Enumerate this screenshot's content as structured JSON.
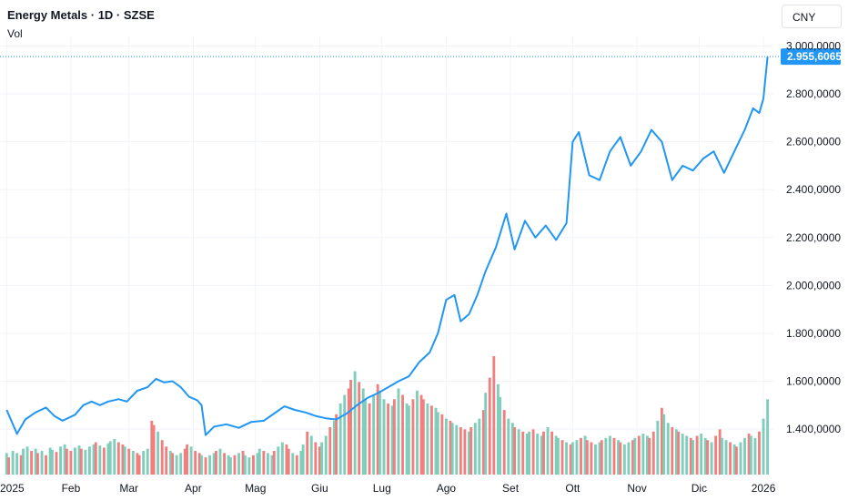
{
  "header": {
    "title": "Energy Metals · 1D · SZSE",
    "volume_label": "Vol"
  },
  "currency_button": {
    "label": "CNY"
  },
  "colors": {
    "line": "#2196f3",
    "vol_up": "#7fcdbb",
    "vol_down": "#f08080",
    "tag_bg": "#2196f3",
    "grid": "#f0f3fa"
  },
  "chart_data": {
    "type": "line",
    "title": "Energy Metals · 1D · SZSE",
    "last_price_label": "2.955,6065",
    "y_ticks": [
      "3.000,0000",
      "2.800,0000",
      "2.600,0000",
      "2.400,0000",
      "2.200,0000",
      "2.000,0000",
      "1.800,0000",
      "1.600,0000",
      "1.400,0000"
    ],
    "y_tick_values": [
      3000,
      2800,
      2600,
      2400,
      2200,
      2000,
      1800,
      1600,
      1400
    ],
    "x_ticks": [
      "2025",
      "Feb",
      "Mar",
      "Apr",
      "Mag",
      "Giu",
      "Lug",
      "Ago",
      "Set",
      "Ott",
      "Nov",
      "Dic",
      "2026"
    ],
    "x_tick_dates": [
      "2025-01-01",
      "2025-02-01",
      "2025-03-01",
      "2025-04-01",
      "2025-05-01",
      "2025-06-01",
      "2025-07-01",
      "2025-08-01",
      "2025-09-01",
      "2025-10-01",
      "2025-11-01",
      "2025-12-01",
      "2026-01-01"
    ],
    "ylim": [
      1210,
      3040
    ],
    "series": [
      {
        "values": [
          {
            "x": "2025-01-01",
            "y": 1480
          },
          {
            "x": "2025-01-06",
            "y": 1380
          },
          {
            "x": "2025-01-10",
            "y": 1440
          },
          {
            "x": "2025-01-15",
            "y": 1470
          },
          {
            "x": "2025-01-20",
            "y": 1490
          },
          {
            "x": "2025-01-24",
            "y": 1455
          },
          {
            "x": "2025-01-28",
            "y": 1435
          },
          {
            "x": "2025-02-03",
            "y": 1460
          },
          {
            "x": "2025-02-07",
            "y": 1500
          },
          {
            "x": "2025-02-11",
            "y": 1515
          },
          {
            "x": "2025-02-15",
            "y": 1500
          },
          {
            "x": "2025-02-19",
            "y": 1515
          },
          {
            "x": "2025-02-24",
            "y": 1525
          },
          {
            "x": "2025-02-28",
            "y": 1515
          },
          {
            "x": "2025-03-05",
            "y": 1560
          },
          {
            "x": "2025-03-10",
            "y": 1575
          },
          {
            "x": "2025-03-14",
            "y": 1610
          },
          {
            "x": "2025-03-18",
            "y": 1595
          },
          {
            "x": "2025-03-22",
            "y": 1600
          },
          {
            "x": "2025-03-26",
            "y": 1575
          },
          {
            "x": "2025-03-30",
            "y": 1535
          },
          {
            "x": "2025-04-03",
            "y": 1520
          },
          {
            "x": "2025-04-05",
            "y": 1500
          },
          {
            "x": "2025-04-07",
            "y": 1375
          },
          {
            "x": "2025-04-11",
            "y": 1410
          },
          {
            "x": "2025-04-17",
            "y": 1420
          },
          {
            "x": "2025-04-23",
            "y": 1405
          },
          {
            "x": "2025-04-29",
            "y": 1430
          },
          {
            "x": "2025-05-05",
            "y": 1435
          },
          {
            "x": "2025-05-10",
            "y": 1465
          },
          {
            "x": "2025-05-15",
            "y": 1495
          },
          {
            "x": "2025-05-20",
            "y": 1480
          },
          {
            "x": "2025-05-25",
            "y": 1470
          },
          {
            "x": "2025-05-30",
            "y": 1455
          },
          {
            "x": "2025-06-04",
            "y": 1445
          },
          {
            "x": "2025-06-09",
            "y": 1440
          },
          {
            "x": "2025-06-14",
            "y": 1465
          },
          {
            "x": "2025-06-19",
            "y": 1500
          },
          {
            "x": "2025-06-24",
            "y": 1530
          },
          {
            "x": "2025-06-29",
            "y": 1550
          },
          {
            "x": "2025-07-04",
            "y": 1575
          },
          {
            "x": "2025-07-09",
            "y": 1600
          },
          {
            "x": "2025-07-14",
            "y": 1620
          },
          {
            "x": "2025-07-19",
            "y": 1680
          },
          {
            "x": "2025-07-24",
            "y": 1720
          },
          {
            "x": "2025-07-28",
            "y": 1800
          },
          {
            "x": "2025-08-01",
            "y": 1940
          },
          {
            "x": "2025-08-05",
            "y": 1960
          },
          {
            "x": "2025-08-08",
            "y": 1850
          },
          {
            "x": "2025-08-12",
            "y": 1880
          },
          {
            "x": "2025-08-16",
            "y": 1960
          },
          {
            "x": "2025-08-20",
            "y": 2060
          },
          {
            "x": "2025-08-25",
            "y": 2160
          },
          {
            "x": "2025-08-30",
            "y": 2300
          },
          {
            "x": "2025-09-03",
            "y": 2150
          },
          {
            "x": "2025-09-08",
            "y": 2270
          },
          {
            "x": "2025-09-13",
            "y": 2200
          },
          {
            "x": "2025-09-18",
            "y": 2250
          },
          {
            "x": "2025-09-23",
            "y": 2190
          },
          {
            "x": "2025-09-28",
            "y": 2260
          },
          {
            "x": "2025-10-01",
            "y": 2600
          },
          {
            "x": "2025-10-04",
            "y": 2640
          },
          {
            "x": "2025-10-09",
            "y": 2460
          },
          {
            "x": "2025-10-14",
            "y": 2440
          },
          {
            "x": "2025-10-19",
            "y": 2560
          },
          {
            "x": "2025-10-24",
            "y": 2620
          },
          {
            "x": "2025-10-29",
            "y": 2500
          },
          {
            "x": "2025-11-03",
            "y": 2560
          },
          {
            "x": "2025-11-08",
            "y": 2650
          },
          {
            "x": "2025-11-13",
            "y": 2600
          },
          {
            "x": "2025-11-18",
            "y": 2440
          },
          {
            "x": "2025-11-23",
            "y": 2500
          },
          {
            "x": "2025-11-28",
            "y": 2480
          },
          {
            "x": "2025-12-03",
            "y": 2530
          },
          {
            "x": "2025-12-08",
            "y": 2560
          },
          {
            "x": "2025-12-13",
            "y": 2470
          },
          {
            "x": "2025-12-18",
            "y": 2560
          },
          {
            "x": "2025-12-23",
            "y": 2650
          },
          {
            "x": "2025-12-27",
            "y": 2740
          },
          {
            "x": "2025-12-30",
            "y": 2720
          },
          {
            "x": "2026-01-01",
            "y": 2780
          },
          {
            "x": "2026-01-03",
            "y": 2955.6065
          }
        ]
      }
    ],
    "volume": {
      "start_date": "2025-01-01",
      "end_date": "2026-01-03",
      "values": [
        20,
        16,
        22,
        20,
        18,
        24,
        26,
        22,
        24,
        20,
        22,
        18,
        25,
        23,
        21,
        26,
        28,
        24,
        22,
        25,
        27,
        24,
        23,
        26,
        28,
        30,
        27,
        25,
        29,
        31,
        33,
        30,
        28,
        26,
        24,
        22,
        20,
        18,
        22,
        24,
        50,
        46,
        40,
        32,
        26,
        22,
        20,
        18,
        20,
        24,
        28,
        26,
        22,
        20,
        18,
        16,
        18,
        20,
        22,
        24,
        20,
        18,
        16,
        18,
        20,
        22,
        18,
        16,
        18,
        20,
        24,
        22,
        20,
        18,
        22,
        26,
        30,
        28,
        24,
        20,
        18,
        22,
        28,
        40,
        36,
        30,
        26,
        30,
        36,
        44,
        50,
        56,
        66,
        74,
        80,
        88,
        96,
        86,
        80,
        70,
        66,
        74,
        84,
        78,
        70,
        66,
        64,
        70,
        80,
        74,
        66,
        64,
        70,
        78,
        74,
        70,
        66,
        64,
        62,
        58,
        56,
        52,
        50,
        48,
        46,
        44,
        42,
        40,
        44,
        48,
        52,
        60,
        76,
        90,
        110,
        84,
        72,
        60,
        52,
        48,
        44,
        42,
        40,
        38,
        40,
        42,
        38,
        36,
        40,
        44,
        40,
        36,
        34,
        32,
        30,
        28,
        30,
        32,
        34,
        36,
        32,
        30,
        28,
        30,
        32,
        34,
        36,
        34,
        32,
        30,
        28,
        30,
        32,
        34,
        36,
        38,
        36,
        34,
        40,
        50,
        62,
        56,
        48,
        44,
        42,
        40,
        38,
        36,
        34,
        32,
        36,
        38,
        34,
        32,
        30,
        36,
        42,
        34,
        32,
        30,
        28,
        26,
        30,
        34,
        38,
        36,
        34,
        40,
        52,
        70
      ],
      "up": [
        1,
        0,
        1,
        1,
        0,
        1,
        1,
        0,
        1,
        0,
        1,
        0,
        1,
        1,
        0,
        1,
        1,
        0,
        0,
        1,
        1,
        0,
        1,
        1,
        1,
        0,
        1,
        0,
        1,
        1,
        1,
        0,
        0,
        1,
        0,
        1,
        0,
        0,
        1,
        1,
        0,
        0,
        1,
        0,
        0,
        1,
        0,
        1,
        1,
        0,
        0,
        1,
        0,
        0,
        1,
        0,
        1,
        1,
        0,
        1,
        0,
        1,
        1,
        0,
        1,
        0,
        1,
        1,
        0,
        1,
        1,
        0,
        1,
        1,
        0,
        1,
        1,
        0,
        0,
        1,
        0,
        1,
        1,
        0,
        1,
        0,
        0,
        1,
        1,
        0,
        1,
        0,
        1,
        1,
        0,
        0,
        1,
        0,
        1,
        1,
        0,
        1,
        0,
        1,
        1,
        0,
        1,
        0,
        1,
        0,
        1,
        1,
        0,
        1,
        0,
        0,
        1,
        0,
        1,
        1,
        0,
        1,
        0,
        1,
        1,
        0,
        0,
        1,
        0,
        1,
        1,
        0,
        1,
        0,
        0,
        1,
        1,
        0,
        1,
        1,
        0,
        1,
        0,
        1,
        1,
        0,
        1,
        1,
        0,
        1,
        0,
        1,
        1,
        0,
        1,
        0,
        1,
        1,
        0,
        1,
        0,
        0,
        1,
        1,
        0,
        1,
        1,
        0,
        1,
        0,
        1,
        1,
        0,
        1,
        0,
        1,
        1,
        0,
        0,
        1,
        0,
        1,
        1,
        0,
        1,
        0,
        1,
        1,
        0,
        1,
        0,
        1,
        1,
        0,
        1,
        0,
        0,
        1,
        1,
        0,
        1,
        0,
        1,
        1,
        0,
        1,
        1,
        0,
        1,
        1
      ]
    }
  }
}
